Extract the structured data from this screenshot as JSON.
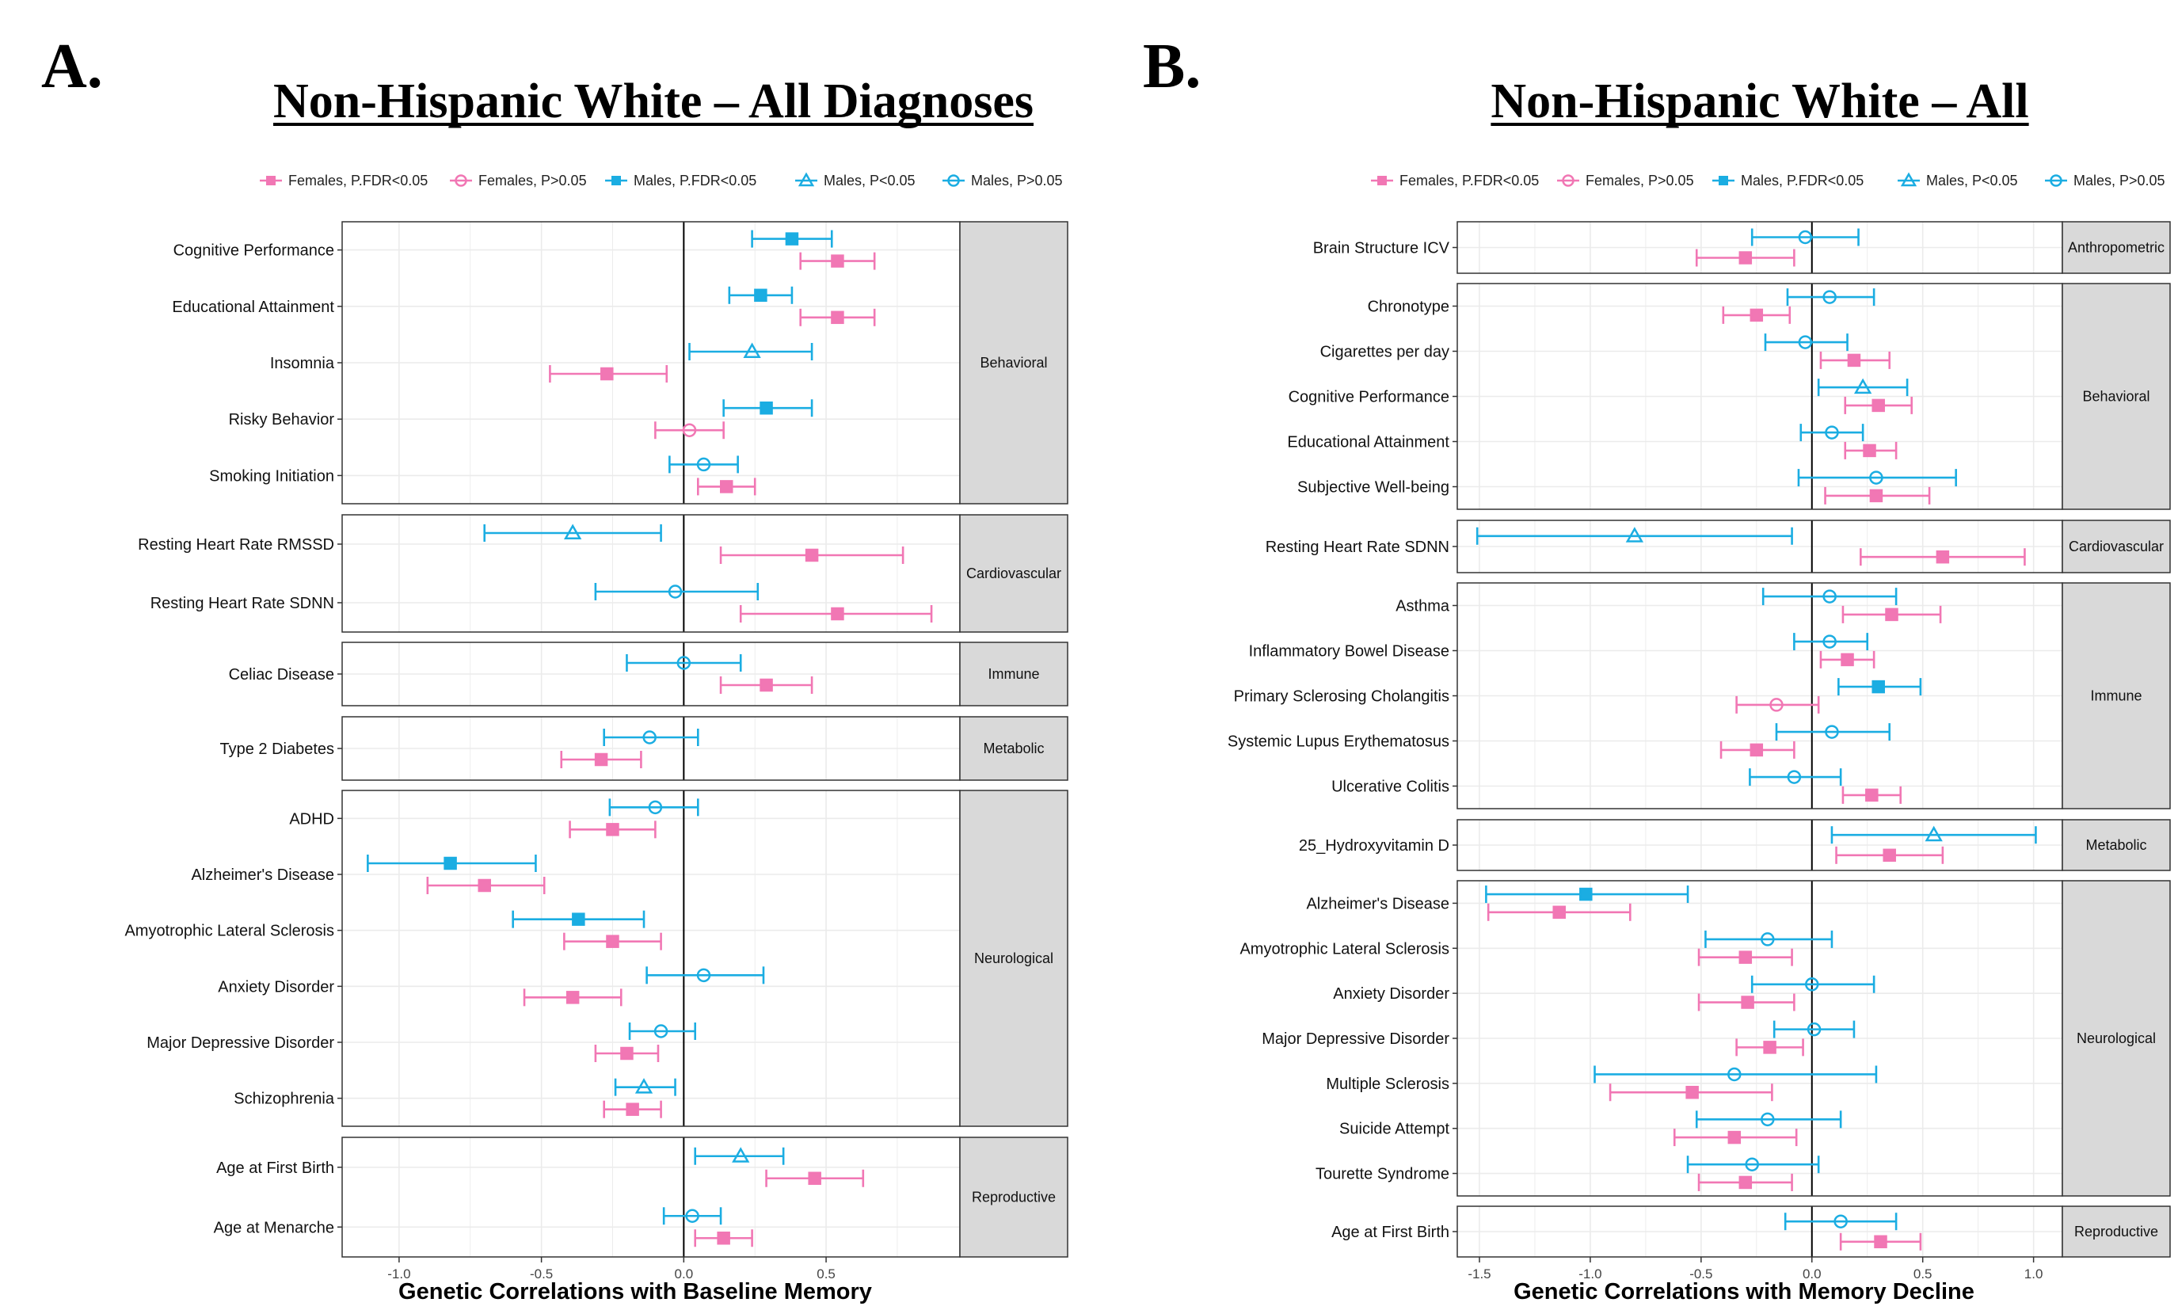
{
  "panels": [
    {
      "letter": "A.",
      "title": "Non-Hispanic White – All Diagnoses"
    },
    {
      "letter": "B.",
      "title": "Non-Hispanic White – All"
    }
  ],
  "legend": [
    {
      "label": "Females, P.FDR<0.05",
      "sex": "F",
      "shape": "square"
    },
    {
      "label": "Females, P>0.05",
      "sex": "F",
      "shape": "circle"
    },
    {
      "label": "Males, P.FDR<0.05",
      "sex": "M",
      "shape": "square"
    },
    {
      "label": "Males, P<0.05",
      "sex": "M",
      "shape": "triangle"
    },
    {
      "label": "Males, P>0.05",
      "sex": "M",
      "shape": "circle"
    }
  ],
  "colors": {
    "female": "#f177b4",
    "male": "#1bade2",
    "strip_bg": "#d9d9d9",
    "grid": "#ebebeb"
  },
  "chart_data": [
    {
      "type": "forest",
      "xlabel": "Genetic Correlations with Baseline Memory",
      "xlim": [
        -1.2,
        0.97
      ],
      "xticks": [
        -1.0,
        -0.5,
        0.0,
        0.5
      ],
      "tick_labels": [
        "-1.0",
        "-0.5",
        "0.0",
        "0.5"
      ],
      "groups": [
        {
          "name": "Behavioral",
          "traits": [
            {
              "label": "Cognitive Performance",
              "male": {
                "est": 0.38,
                "lo": 0.24,
                "hi": 0.52,
                "shape": "square"
              },
              "female": {
                "est": 0.54,
                "lo": 0.41,
                "hi": 0.67,
                "shape": "square"
              }
            },
            {
              "label": "Educational Attainment",
              "male": {
                "est": 0.27,
                "lo": 0.16,
                "hi": 0.38,
                "shape": "square"
              },
              "female": {
                "est": 0.54,
                "lo": 0.41,
                "hi": 0.67,
                "shape": "square"
              }
            },
            {
              "label": "Insomnia",
              "male": {
                "est": 0.24,
                "lo": 0.02,
                "hi": 0.45,
                "shape": "triangle"
              },
              "female": {
                "est": -0.27,
                "lo": -0.47,
                "hi": -0.06,
                "shape": "square"
              }
            },
            {
              "label": "Risky Behavior",
              "male": {
                "est": 0.29,
                "lo": 0.14,
                "hi": 0.45,
                "shape": "square"
              },
              "female": {
                "est": 0.02,
                "lo": -0.1,
                "hi": 0.14,
                "shape": "circle"
              }
            },
            {
              "label": "Smoking Initiation",
              "male": {
                "est": 0.07,
                "lo": -0.05,
                "hi": 0.19,
                "shape": "circle"
              },
              "female": {
                "est": 0.15,
                "lo": 0.05,
                "hi": 0.25,
                "shape": "square"
              }
            }
          ]
        },
        {
          "name": "Cardiovascular",
          "traits": [
            {
              "label": "Resting Heart Rate RMSSD",
              "male": {
                "est": -0.39,
                "lo": -0.7,
                "hi": -0.08,
                "shape": "triangle"
              },
              "female": {
                "est": 0.45,
                "lo": 0.13,
                "hi": 0.77,
                "shape": "square"
              }
            },
            {
              "label": "Resting Heart Rate SDNN",
              "male": {
                "est": -0.03,
                "lo": -0.31,
                "hi": 0.26,
                "shape": "circle"
              },
              "female": {
                "est": 0.54,
                "lo": 0.2,
                "hi": 0.87,
                "shape": "square"
              }
            }
          ]
        },
        {
          "name": "Immune",
          "traits": [
            {
              "label": "Celiac Disease",
              "male": {
                "est": 0.0,
                "lo": -0.2,
                "hi": 0.2,
                "shape": "circle"
              },
              "female": {
                "est": 0.29,
                "lo": 0.13,
                "hi": 0.45,
                "shape": "square"
              }
            }
          ]
        },
        {
          "name": "Metabolic",
          "traits": [
            {
              "label": "Type 2 Diabetes",
              "male": {
                "est": -0.12,
                "lo": -0.28,
                "hi": 0.05,
                "shape": "circle"
              },
              "female": {
                "est": -0.29,
                "lo": -0.43,
                "hi": -0.15,
                "shape": "square"
              }
            }
          ]
        },
        {
          "name": "Neurological",
          "traits": [
            {
              "label": "ADHD",
              "male": {
                "est": -0.1,
                "lo": -0.26,
                "hi": 0.05,
                "shape": "circle"
              },
              "female": {
                "est": -0.25,
                "lo": -0.4,
                "hi": -0.1,
                "shape": "square"
              }
            },
            {
              "label": "Alzheimer's Disease",
              "male": {
                "est": -0.82,
                "lo": -1.11,
                "hi": -0.52,
                "shape": "square"
              },
              "female": {
                "est": -0.7,
                "lo": -0.9,
                "hi": -0.49,
                "shape": "square"
              }
            },
            {
              "label": "Amyotrophic Lateral Sclerosis",
              "male": {
                "est": -0.37,
                "lo": -0.6,
                "hi": -0.14,
                "shape": "square"
              },
              "female": {
                "est": -0.25,
                "lo": -0.42,
                "hi": -0.08,
                "shape": "square"
              }
            },
            {
              "label": "Anxiety Disorder",
              "male": {
                "est": 0.07,
                "lo": -0.13,
                "hi": 0.28,
                "shape": "circle"
              },
              "female": {
                "est": -0.39,
                "lo": -0.56,
                "hi": -0.22,
                "shape": "square"
              }
            },
            {
              "label": "Major Depressive Disorder",
              "male": {
                "est": -0.08,
                "lo": -0.19,
                "hi": 0.04,
                "shape": "circle"
              },
              "female": {
                "est": -0.2,
                "lo": -0.31,
                "hi": -0.09,
                "shape": "square"
              }
            },
            {
              "label": "Schizophrenia",
              "male": {
                "est": -0.14,
                "lo": -0.24,
                "hi": -0.03,
                "shape": "triangle"
              },
              "female": {
                "est": -0.18,
                "lo": -0.28,
                "hi": -0.08,
                "shape": "square"
              }
            }
          ]
        },
        {
          "name": "Reproductive",
          "traits": [
            {
              "label": "Age at First Birth",
              "male": {
                "est": 0.2,
                "lo": 0.04,
                "hi": 0.35,
                "shape": "triangle"
              },
              "female": {
                "est": 0.46,
                "lo": 0.29,
                "hi": 0.63,
                "shape": "square"
              }
            },
            {
              "label": "Age at Menarche",
              "male": {
                "est": 0.03,
                "lo": -0.07,
                "hi": 0.13,
                "shape": "circle"
              },
              "female": {
                "est": 0.14,
                "lo": 0.04,
                "hi": 0.24,
                "shape": "square"
              }
            }
          ]
        }
      ]
    },
    {
      "type": "forest",
      "xlabel": "Genetic Correlations with Memory Decline",
      "xlim": [
        -1.6,
        1.13
      ],
      "xticks": [
        -1.5,
        -1.0,
        -0.5,
        0.0,
        0.5,
        1.0
      ],
      "tick_labels": [
        "-1.5",
        "-1.0",
        "-0.5",
        "0.0",
        "0.5",
        "1.0"
      ],
      "groups": [
        {
          "name": "Anthropometric",
          "traits": [
            {
              "label": "Brain Structure ICV",
              "male": {
                "est": -0.03,
                "lo": -0.27,
                "hi": 0.21,
                "shape": "circle"
              },
              "female": {
                "est": -0.3,
                "lo": -0.52,
                "hi": -0.08,
                "shape": "square"
              }
            }
          ]
        },
        {
          "name": "Behavioral",
          "traits": [
            {
              "label": "Chronotype",
              "male": {
                "est": 0.08,
                "lo": -0.11,
                "hi": 0.28,
                "shape": "circle"
              },
              "female": {
                "est": -0.25,
                "lo": -0.4,
                "hi": -0.1,
                "shape": "square"
              }
            },
            {
              "label": "Cigarettes per day",
              "male": {
                "est": -0.03,
                "lo": -0.21,
                "hi": 0.16,
                "shape": "circle"
              },
              "female": {
                "est": 0.19,
                "lo": 0.04,
                "hi": 0.35,
                "shape": "square"
              }
            },
            {
              "label": "Cognitive Performance",
              "male": {
                "est": 0.23,
                "lo": 0.03,
                "hi": 0.43,
                "shape": "triangle"
              },
              "female": {
                "est": 0.3,
                "lo": 0.15,
                "hi": 0.45,
                "shape": "square"
              }
            },
            {
              "label": "Educational Attainment",
              "male": {
                "est": 0.09,
                "lo": -0.05,
                "hi": 0.23,
                "shape": "circle"
              },
              "female": {
                "est": 0.26,
                "lo": 0.15,
                "hi": 0.38,
                "shape": "square"
              }
            },
            {
              "label": "Subjective Well-being",
              "male": {
                "est": 0.29,
                "lo": -0.06,
                "hi": 0.65,
                "shape": "circle"
              },
              "female": {
                "est": 0.29,
                "lo": 0.06,
                "hi": 0.53,
                "shape": "square"
              }
            }
          ]
        },
        {
          "name": "Cardiovascular",
          "traits": [
            {
              "label": "Resting Heart Rate SDNN",
              "male": {
                "est": -0.8,
                "lo": -1.51,
                "hi": -0.09,
                "shape": "triangle"
              },
              "female": {
                "est": 0.59,
                "lo": 0.22,
                "hi": 0.96,
                "shape": "square"
              }
            }
          ]
        },
        {
          "name": "Immune",
          "traits": [
            {
              "label": "Asthma",
              "male": {
                "est": 0.08,
                "lo": -0.22,
                "hi": 0.38,
                "shape": "circle"
              },
              "female": {
                "est": 0.36,
                "lo": 0.14,
                "hi": 0.58,
                "shape": "square"
              }
            },
            {
              "label": "Inflammatory Bowel Disease",
              "male": {
                "est": 0.08,
                "lo": -0.08,
                "hi": 0.25,
                "shape": "circle"
              },
              "female": {
                "est": 0.16,
                "lo": 0.04,
                "hi": 0.28,
                "shape": "square"
              }
            },
            {
              "label": "Primary Sclerosing Cholangitis",
              "male": {
                "est": 0.3,
                "lo": 0.12,
                "hi": 0.49,
                "shape": "square"
              },
              "female": {
                "est": -0.16,
                "lo": -0.34,
                "hi": 0.03,
                "shape": "circle"
              }
            },
            {
              "label": "Systemic Lupus Erythematosus",
              "male": {
                "est": 0.09,
                "lo": -0.16,
                "hi": 0.35,
                "shape": "circle"
              },
              "female": {
                "est": -0.25,
                "lo": -0.41,
                "hi": -0.08,
                "shape": "square"
              }
            },
            {
              "label": "Ulcerative Colitis",
              "male": {
                "est": -0.08,
                "lo": -0.28,
                "hi": 0.13,
                "shape": "circle"
              },
              "female": {
                "est": 0.27,
                "lo": 0.14,
                "hi": 0.4,
                "shape": "square"
              }
            }
          ]
        },
        {
          "name": "Metabolic",
          "traits": [
            {
              "label": "25_Hydroxyvitamin D",
              "male": {
                "est": 0.55,
                "lo": 0.09,
                "hi": 1.01,
                "shape": "triangle"
              },
              "female": {
                "est": 0.35,
                "lo": 0.11,
                "hi": 0.59,
                "shape": "square"
              }
            }
          ]
        },
        {
          "name": "Neurological",
          "traits": [
            {
              "label": "Alzheimer's Disease",
              "male": {
                "est": -1.02,
                "lo": -1.47,
                "hi": -0.56,
                "shape": "square"
              },
              "female": {
                "est": -1.14,
                "lo": -1.46,
                "hi": -0.82,
                "shape": "square"
              }
            },
            {
              "label": "Amyotrophic Lateral Sclerosis",
              "male": {
                "est": -0.2,
                "lo": -0.48,
                "hi": 0.09,
                "shape": "circle"
              },
              "female": {
                "est": -0.3,
                "lo": -0.51,
                "hi": -0.09,
                "shape": "square"
              }
            },
            {
              "label": "Anxiety Disorder",
              "male": {
                "est": 0.0,
                "lo": -0.27,
                "hi": 0.28,
                "shape": "circle"
              },
              "female": {
                "est": -0.29,
                "lo": -0.51,
                "hi": -0.08,
                "shape": "square"
              }
            },
            {
              "label": "Major Depressive Disorder",
              "male": {
                "est": 0.01,
                "lo": -0.17,
                "hi": 0.19,
                "shape": "circle"
              },
              "female": {
                "est": -0.19,
                "lo": -0.34,
                "hi": -0.04,
                "shape": "square"
              }
            },
            {
              "label": "Multiple Sclerosis",
              "male": {
                "est": -0.35,
                "lo": -0.98,
                "hi": 0.29,
                "shape": "circle"
              },
              "female": {
                "est": -0.54,
                "lo": -0.91,
                "hi": -0.18,
                "shape": "square"
              }
            },
            {
              "label": "Suicide Attempt",
              "male": {
                "est": -0.2,
                "lo": -0.52,
                "hi": 0.13,
                "shape": "circle"
              },
              "female": {
                "est": -0.35,
                "lo": -0.62,
                "hi": -0.07,
                "shape": "square"
              }
            },
            {
              "label": "Tourette Syndrome",
              "male": {
                "est": -0.27,
                "lo": -0.56,
                "hi": 0.03,
                "shape": "circle"
              },
              "female": {
                "est": -0.3,
                "lo": -0.51,
                "hi": -0.09,
                "shape": "square"
              }
            }
          ]
        },
        {
          "name": "Reproductive",
          "traits": [
            {
              "label": "Age at First Birth",
              "male": {
                "est": 0.13,
                "lo": -0.12,
                "hi": 0.38,
                "shape": "circle"
              },
              "female": {
                "est": 0.31,
                "lo": 0.13,
                "hi": 0.49,
                "shape": "square"
              }
            }
          ]
        }
      ]
    }
  ]
}
